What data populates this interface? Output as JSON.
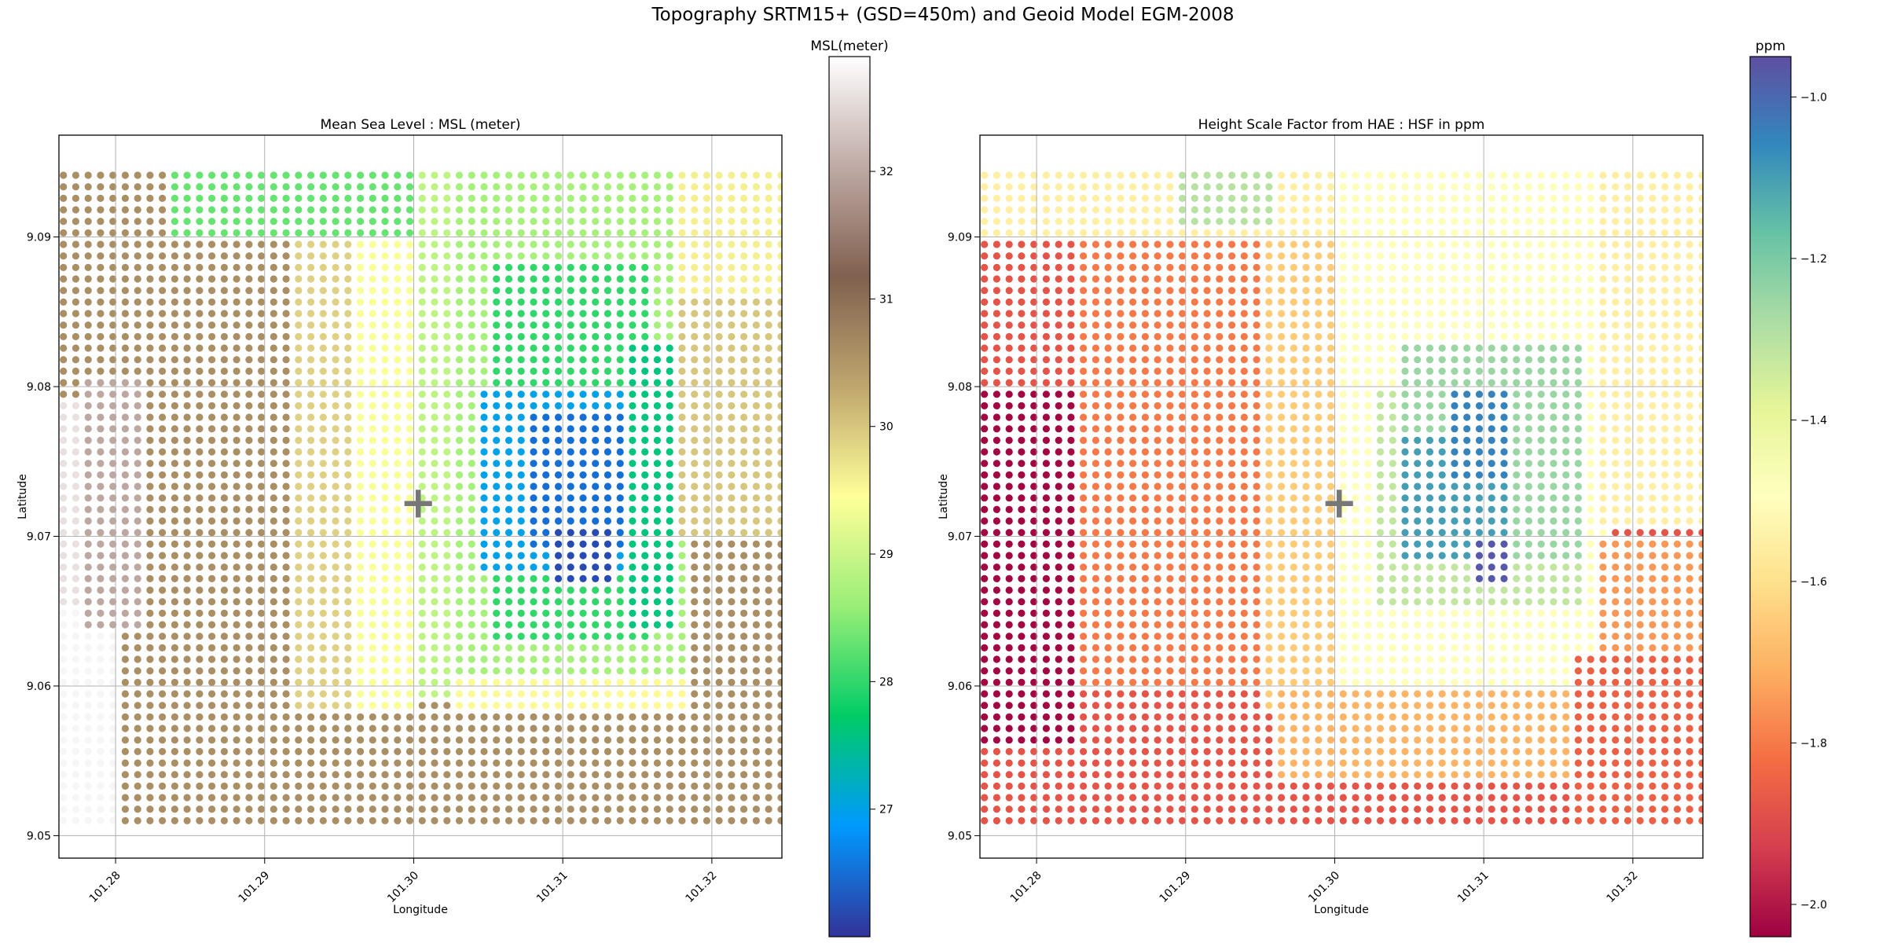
{
  "figure": {
    "title": "Topography SRTM15+ (GSD=450m) and Geoid Model EGM-2008"
  },
  "chart_data": [
    {
      "type": "scatter",
      "title": "Mean Sea Level : MSL (meter)",
      "xlabel": "Longitude",
      "ylabel": "Latitude",
      "xlim": [
        101.2762,
        101.3247
      ],
      "ylim": [
        9.0485,
        9.0968
      ],
      "xticks": [
        "101.28",
        "101.29",
        "101.30",
        "101.31",
        "101.32"
      ],
      "yticks": [
        "9.05",
        "9.06",
        "9.07",
        "9.08",
        "9.09"
      ],
      "grid": true,
      "marker": {
        "x": 101.3003,
        "y": 9.0723,
        "symbol": "+",
        "color": "#777777"
      },
      "colorbar": {
        "label": "MSL(meter)",
        "range": [
          26.0,
          32.9
        ],
        "ticks": [
          "27",
          "28",
          "29",
          "30",
          "31",
          "32"
        ],
        "colormap": "terrain",
        "stops": [
          "#333399",
          "#0099ff",
          "#00cc66",
          "#99ee77",
          "#ffff99",
          "#bfa66e",
          "#80604f",
          "#bfaaa5",
          "#ffffff"
        ]
      },
      "grid_points": {
        "lon_start": 101.2765,
        "lon_step": 0.00083,
        "lon_count": 59,
        "lat_start": 9.051,
        "lat_step": 0.00077,
        "lat_count": 57
      },
      "value_field": {
        "base": 30.6,
        "zones": [
          {
            "lon": [
              101.2762,
              101.2805
            ],
            "lat": [
              9.0485,
              9.065
            ],
            "value": 32.8
          },
          {
            "lon": [
              101.2762,
              101.278
            ],
            "lat": [
              9.065,
              9.079
            ],
            "value": 32.6
          },
          {
            "lon": [
              101.278,
              101.282
            ],
            "lat": [
              9.064,
              9.081
            ],
            "value": 32.0
          },
          {
            "lon": [
              101.292,
              101.296
            ],
            "lat": [
              9.058,
              9.09
            ],
            "value": 29.9
          },
          {
            "lon": [
              101.296,
              101.3
            ],
            "lat": [
              9.058,
              9.09
            ],
            "value": 29.4
          },
          {
            "lon": [
              101.2835,
              101.3
            ],
            "lat": [
              9.09,
              9.095
            ],
            "value": 28.3
          },
          {
            "lon": [
              101.3,
              101.303
            ],
            "lat": [
              9.059,
              9.095
            ],
            "value": 28.9
          },
          {
            "lon": [
              101.303,
              101.318
            ],
            "lat": [
              9.061,
              9.095
            ],
            "value": 28.7
          },
          {
            "lon": [
              101.318,
              101.3247
            ],
            "lat": [
              9.086,
              9.095
            ],
            "value": 29.6
          },
          {
            "lon": [
              101.318,
              101.3247
            ],
            "lat": [
              9.07,
              9.086
            ],
            "value": 30.0
          },
          {
            "lon": [
              101.303,
              101.318
            ],
            "lat": [
              9.058,
              9.061
            ],
            "value": 29.5
          },
          {
            "lon": [
              101.3055,
              101.316
            ],
            "lat": [
              9.063,
              9.088
            ],
            "value": 28.0
          },
          {
            "lon": [
              101.3045,
              101.3165
            ],
            "lat": [
              9.0675,
              9.08
            ],
            "value": 27.0
          },
          {
            "lon": [
              101.308,
              101.315
            ],
            "lat": [
              9.069,
              9.078
            ],
            "value": 26.5
          },
          {
            "lon": [
              101.3095,
              101.3135
            ],
            "lat": [
              9.067,
              9.071
            ],
            "value": 26.2
          },
          {
            "lon": [
              101.314,
              101.3175
            ],
            "lat": [
              9.064,
              9.083
            ],
            "value": 27.6
          }
        ]
      }
    },
    {
      "type": "scatter",
      "title": "Height Scale Factor from HAE : HSF in ppm",
      "xlabel": "Longitude",
      "ylabel": "Latitude",
      "xlim": [
        101.2762,
        101.3247
      ],
      "ylim": [
        9.0485,
        9.0968
      ],
      "xticks": [
        "101.28",
        "101.29",
        "101.30",
        "101.31",
        "101.32"
      ],
      "yticks": [
        "9.05",
        "9.06",
        "9.07",
        "9.08",
        "9.09"
      ],
      "grid": true,
      "marker": {
        "x": 101.3003,
        "y": 9.0723,
        "symbol": "+",
        "color": "#777777"
      },
      "colorbar": {
        "label": "ppm",
        "range": [
          -2.04,
          -0.95
        ],
        "ticks": [
          "−2.0",
          "−1.8",
          "−1.6",
          "−1.4",
          "−1.2",
          "−1.0"
        ],
        "colormap": "Spectral",
        "stops": [
          "#9e0142",
          "#d53e4f",
          "#f46d43",
          "#fdae61",
          "#fee08b",
          "#ffffbf",
          "#e6f598",
          "#abdda4",
          "#66c2a5",
          "#3288bd",
          "#5e4fa2"
        ]
      },
      "grid_points": {
        "lon_start": 101.2765,
        "lon_step": 0.00083,
        "lon_count": 59,
        "lat_start": 9.051,
        "lat_step": 0.00077,
        "lat_count": 57
      },
      "value_field": {
        "base": -1.88,
        "zones": [
          {
            "lon": [
              101.2762,
              101.283
            ],
            "lat": [
              9.056,
              9.08
            ],
            "value": -2.03
          },
          {
            "lon": [
              101.283,
              101.295
            ],
            "lat": [
              9.06,
              9.09
            ],
            "value": -1.8
          },
          {
            "lon": [
              101.295,
              101.3
            ],
            "lat": [
              9.058,
              9.09
            ],
            "value": -1.65
          },
          {
            "lon": [
              101.2762,
              101.3
            ],
            "lat": [
              9.09,
              9.095
            ],
            "value": -1.55
          },
          {
            "lon": [
              101.289,
              101.296
            ],
            "lat": [
              9.091,
              9.095
            ],
            "value": -1.3
          },
          {
            "lon": [
              101.3,
              101.318
            ],
            "lat": [
              9.06,
              9.0955
            ],
            "value": -1.48
          },
          {
            "lon": [
              101.318,
              101.3247
            ],
            "lat": [
              9.071,
              9.095
            ],
            "value": -1.55
          },
          {
            "lon": [
              101.296,
              101.318
            ],
            "lat": [
              9.054,
              9.06
            ],
            "value": -1.7
          },
          {
            "lon": [
              101.303,
              101.317
            ],
            "lat": [
              9.065,
              9.08
            ],
            "value": -1.32
          },
          {
            "lon": [
              101.3045,
              101.3165
            ],
            "lat": [
              9.068,
              9.083
            ],
            "value": -1.25
          },
          {
            "lon": [
              101.3045,
              101.3115
            ],
            "lat": [
              9.068,
              9.077
            ],
            "value": -1.1
          },
          {
            "lon": [
              101.308,
              101.312
            ],
            "lat": [
              9.074,
              9.08
            ],
            "value": -1.05
          },
          {
            "lon": [
              101.3095,
              101.312
            ],
            "lat": [
              9.067,
              9.07
            ],
            "value": -0.97
          },
          {
            "lon": [
              101.316,
              101.3247
            ],
            "lat": [
              9.0485,
              9.062
            ],
            "value": -1.85
          },
          {
            "lon": [
              101.318,
              101.3247
            ],
            "lat": [
              9.062,
              9.07
            ],
            "value": -1.75
          }
        ]
      }
    }
  ]
}
